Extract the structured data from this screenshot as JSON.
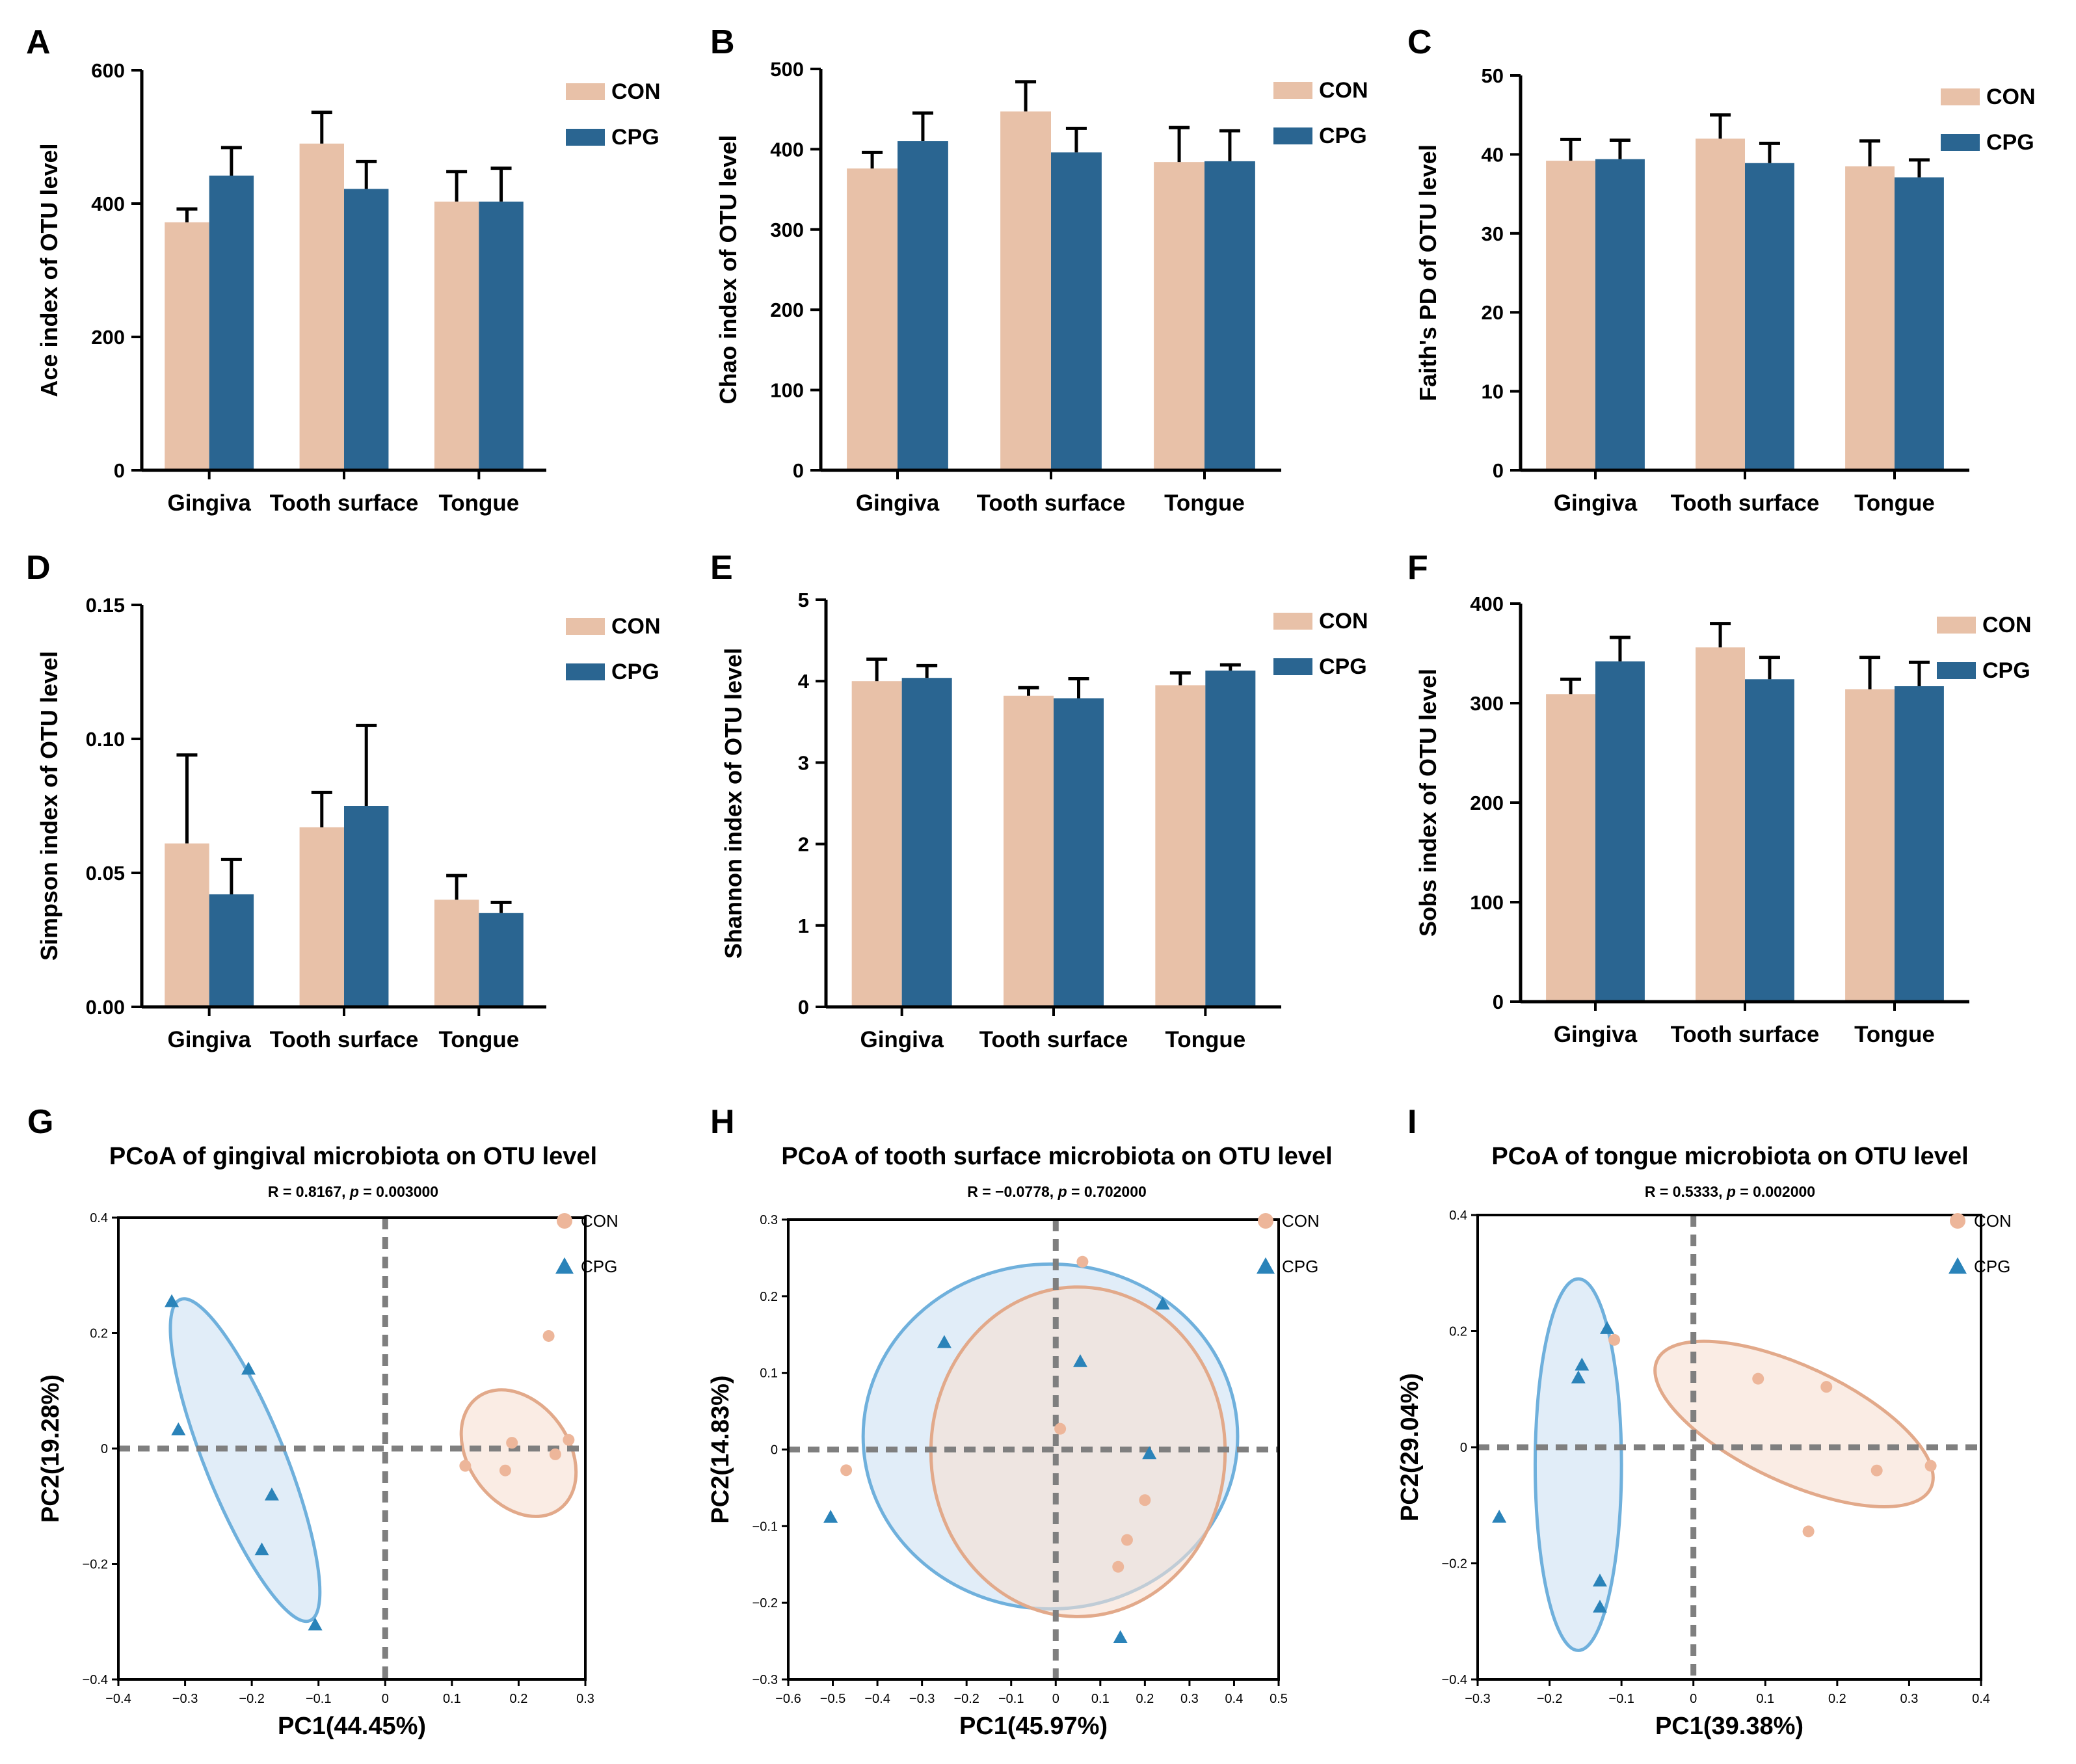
{
  "colors": {
    "con": "#E8C1A8",
    "cpg": "#2A6591",
    "con_ellipse_fill": "#F6E0D2",
    "con_ellipse_stroke": "#E2A98A",
    "cpg_ellipse_fill": "#D7E7F5",
    "cpg_ellipse_stroke": "#6FB0DC",
    "con_point": "#EDB69A",
    "cpg_point": "#2A83B9",
    "dash": "#7F7F7F",
    "axis": "#000000"
  },
  "legend": {
    "con": "CON",
    "cpg": "CPG"
  },
  "chart_data": [
    {
      "panel": "A",
      "type": "bar",
      "ylabel": "Ace index of OTU level",
      "categories": [
        "Gingiva",
        "Tooth surface",
        "Tongue"
      ],
      "ylim": [
        0,
        600
      ],
      "yticks": [
        0,
        200,
        400,
        600
      ],
      "ytick_labels": [
        "0",
        "200",
        "400",
        "600"
      ],
      "series": [
        {
          "name": "CON",
          "values": [
            372,
            490,
            403
          ],
          "errors": [
            20,
            47,
            45
          ]
        },
        {
          "name": "CPG",
          "values": [
            442,
            422,
            403
          ],
          "errors": [
            42,
            41,
            50
          ]
        }
      ]
    },
    {
      "panel": "B",
      "type": "bar",
      "ylabel": "Chao index of OTU level",
      "categories": [
        "Gingiva",
        "Tooth surface",
        "Tongue"
      ],
      "ylim": [
        0,
        500
      ],
      "yticks": [
        0,
        100,
        200,
        300,
        400,
        500
      ],
      "ytick_labels": [
        "0",
        "100",
        "200",
        "300",
        "400",
        "500"
      ],
      "series": [
        {
          "name": "CON",
          "values": [
            376,
            447,
            384
          ],
          "errors": [
            20,
            37,
            43
          ]
        },
        {
          "name": "CPG",
          "values": [
            410,
            396,
            385
          ],
          "errors": [
            35,
            30,
            38
          ]
        }
      ]
    },
    {
      "panel": "C",
      "type": "bar",
      "ylabel": "Faith's PD of OTU level",
      "categories": [
        "Gingiva",
        "Tooth surface",
        "Tongue"
      ],
      "ylim": [
        0,
        50
      ],
      "yticks": [
        0,
        10,
        20,
        30,
        40,
        50
      ],
      "ytick_labels": [
        "0",
        "10",
        "20",
        "30",
        "40",
        "50"
      ],
      "series": [
        {
          "name": "CON",
          "values": [
            39.2,
            42.0,
            38.5
          ],
          "errors": [
            2.7,
            3.0,
            3.2
          ]
        },
        {
          "name": "CPG",
          "values": [
            39.4,
            38.9,
            37.1
          ],
          "errors": [
            2.4,
            2.5,
            2.2
          ]
        }
      ]
    },
    {
      "panel": "D",
      "type": "bar",
      "ylabel": "Simpson index of OTU level",
      "categories": [
        "Gingiva",
        "Tooth surface",
        "Tongue"
      ],
      "ylim": [
        0,
        0.15
      ],
      "yticks": [
        0,
        0.05,
        0.1,
        0.15
      ],
      "ytick_labels": [
        "0.00",
        "0.05",
        "0.10",
        "0.15"
      ],
      "series": [
        {
          "name": "CON",
          "values": [
            0.061,
            0.067,
            0.04
          ],
          "errors": [
            0.033,
            0.013,
            0.009
          ]
        },
        {
          "name": "CPG",
          "values": [
            0.042,
            0.075,
            0.035
          ],
          "errors": [
            0.013,
            0.03,
            0.004
          ]
        }
      ]
    },
    {
      "panel": "E",
      "type": "bar",
      "ylabel": "Shannon index of OTU level",
      "categories": [
        "Gingiva",
        "Tooth surface",
        "Tongue"
      ],
      "ylim": [
        0,
        5
      ],
      "yticks": [
        0,
        1,
        2,
        3,
        4,
        5
      ],
      "ytick_labels": [
        "0",
        "1",
        "2",
        "3",
        "4",
        "5"
      ],
      "series": [
        {
          "name": "CON",
          "values": [
            4.0,
            3.82,
            3.95
          ],
          "errors": [
            0.27,
            0.1,
            0.15
          ]
        },
        {
          "name": "CPG",
          "values": [
            4.04,
            3.79,
            4.13
          ],
          "errors": [
            0.15,
            0.24,
            0.07
          ]
        }
      ]
    },
    {
      "panel": "F",
      "type": "bar",
      "ylabel": "Sobs index of OTU level",
      "categories": [
        "Gingiva",
        "Tooth surface",
        "Tongue"
      ],
      "ylim": [
        0,
        400
      ],
      "yticks": [
        0,
        100,
        200,
        300,
        400
      ],
      "ytick_labels": [
        "0",
        "100",
        "200",
        "300",
        "400"
      ],
      "series": [
        {
          "name": "CON",
          "values": [
            309,
            356,
            314
          ],
          "errors": [
            15,
            24,
            32
          ]
        },
        {
          "name": "CPG",
          "values": [
            342,
            324,
            317
          ],
          "errors": [
            24,
            22,
            24
          ]
        }
      ]
    },
    {
      "panel": "G",
      "type": "scatter",
      "title": "PCoA of gingival microbiota on OTU level",
      "subtitle_prefix": "R = 0.8167, ",
      "subtitle_p_label": "p",
      "subtitle_suffix": " = 0.003000",
      "xlabel": "PC1(44.45%)",
      "ylabel": "PC2(19.28%)",
      "xlim": [
        -0.4,
        0.3
      ],
      "ylim": [
        -0.4,
        0.4
      ],
      "xticks": [
        -0.4,
        -0.3,
        -0.2,
        -0.1,
        0,
        0.1,
        0.2,
        0.3
      ],
      "xtick_labels": [
        "−0.4",
        "−0.3",
        "−0.2",
        "−0.1",
        "0",
        "0.1",
        "0.2",
        "0.3"
      ],
      "yticks": [
        -0.4,
        -0.2,
        0,
        0.2,
        0.4
      ],
      "ytick_labels": [
        "−0.4",
        "−0.2",
        "0",
        "0.2",
        "0.4"
      ],
      "series": [
        {
          "name": "CON",
          "marker": "circle",
          "points": [
            [
              0.245,
              0.195
            ],
            [
              0.19,
              0.01
            ],
            [
              0.275,
              0.015
            ],
            [
              0.255,
              -0.01
            ],
            [
              0.12,
              -0.03
            ],
            [
              0.18,
              -0.038
            ]
          ],
          "ellipse": {
            "center": [
              0.2,
              -0.008
            ],
            "rx": 0.075,
            "ry": 0.12,
            "angle_deg": -36
          }
        },
        {
          "name": "CPG",
          "marker": "triangle",
          "points": [
            [
              -0.32,
              0.255
            ],
            [
              -0.205,
              0.138
            ],
            [
              -0.31,
              0.033
            ],
            [
              -0.17,
              -0.08
            ],
            [
              -0.185,
              -0.175
            ],
            [
              -0.105,
              -0.305
            ]
          ],
          "ellipse": {
            "center": [
              -0.21,
              -0.02
            ],
            "rx": 0.06,
            "ry": 0.3,
            "angle_deg": -22
          }
        }
      ]
    },
    {
      "panel": "H",
      "type": "scatter",
      "title": "PCoA of tooth surface microbiota on OTU level",
      "subtitle_prefix": "R = −0.0778, ",
      "subtitle_p_label": "p",
      "subtitle_suffix": " = 0.702000",
      "xlabel": "PC1(45.97%)",
      "ylabel": "PC2(14.83%)",
      "xlim": [
        -0.6,
        0.5
      ],
      "ylim": [
        -0.3,
        0.3
      ],
      "xticks": [
        -0.6,
        -0.5,
        -0.4,
        -0.3,
        -0.2,
        -0.1,
        0,
        0.1,
        0.2,
        0.3,
        0.4,
        0.5
      ],
      "xtick_labels": [
        "−0.6",
        "−0.5",
        "−0.4",
        "−0.3",
        "−0.2",
        "−0.1",
        "0",
        "0.1",
        "0.2",
        "0.3",
        "0.4",
        "0.5"
      ],
      "yticks": [
        -0.3,
        -0.2,
        -0.1,
        0,
        0.1,
        0.2,
        0.3
      ],
      "ytick_labels": [
        "−0.3",
        "−0.2",
        "−0.1",
        "0",
        "0.1",
        "0.2",
        "0.3"
      ],
      "series": [
        {
          "name": "CPG",
          "marker": "triangle",
          "points": [
            [
              0.24,
              0.19
            ],
            [
              -0.25,
              0.14
            ],
            [
              0.055,
              0.115
            ],
            [
              0.21,
              -0.005
            ],
            [
              -0.505,
              -0.088
            ],
            [
              0.145,
              -0.245
            ]
          ],
          "ellipse": {
            "center": [
              -0.012,
              0.017
            ],
            "rx": 0.42,
            "ry": 0.225,
            "angle_deg": 0
          }
        },
        {
          "name": "CON",
          "marker": "circle",
          "points": [
            [
              0.06,
              0.245
            ],
            [
              0.01,
              0.027
            ],
            [
              -0.47,
              -0.027
            ],
            [
              0.2,
              -0.066
            ],
            [
              0.16,
              -0.118
            ],
            [
              0.14,
              -0.153
            ]
          ],
          "ellipse": {
            "center": [
              0.05,
              -0.003
            ],
            "rx": 0.33,
            "ry": 0.215,
            "angle_deg": 0
          }
        }
      ]
    },
    {
      "panel": "I",
      "type": "scatter",
      "title": "PCoA of tongue microbiota on OTU level",
      "subtitle_prefix": "R = 0.5333, ",
      "subtitle_p_label": "p",
      "subtitle_suffix": " = 0.002000",
      "xlabel": "PC1(39.38%)",
      "ylabel": "PC2(29.04%)",
      "xlim": [
        -0.3,
        0.4
      ],
      "ylim": [
        -0.4,
        0.4
      ],
      "xticks": [
        -0.3,
        -0.2,
        -0.1,
        0,
        0.1,
        0.2,
        0.3,
        0.4
      ],
      "xtick_labels": [
        "−0.3",
        "−0.2",
        "−0.1",
        "0",
        "0.1",
        "0.2",
        "0.3",
        "0.4"
      ],
      "yticks": [
        -0.4,
        -0.2,
        0,
        0.2,
        0.4
      ],
      "ytick_labels": [
        "−0.4",
        "−0.2",
        "0",
        "0.2",
        "0.4"
      ],
      "series": [
        {
          "name": "CON",
          "marker": "circle",
          "points": [
            [
              -0.11,
              0.185
            ],
            [
              0.09,
              0.118
            ],
            [
              0.185,
              0.104
            ],
            [
              0.33,
              -0.032
            ],
            [
              0.255,
              -0.04
            ],
            [
              0.16,
              -0.145
            ]
          ],
          "ellipse": {
            "center": [
              0.14,
              0.04
            ],
            "rx": 0.21,
            "ry": 0.1,
            "angle_deg": 25
          }
        },
        {
          "name": "CPG",
          "marker": "triangle",
          "points": [
            [
              -0.12,
              0.205
            ],
            [
              -0.155,
              0.142
            ],
            [
              -0.16,
              0.12
            ],
            [
              -0.27,
              -0.12
            ],
            [
              -0.13,
              -0.23
            ],
            [
              -0.13,
              -0.275
            ]
          ],
          "ellipse": {
            "center": [
              -0.16,
              -0.03
            ],
            "rx": 0.06,
            "ry": 0.32,
            "angle_deg": 0
          }
        }
      ]
    }
  ]
}
